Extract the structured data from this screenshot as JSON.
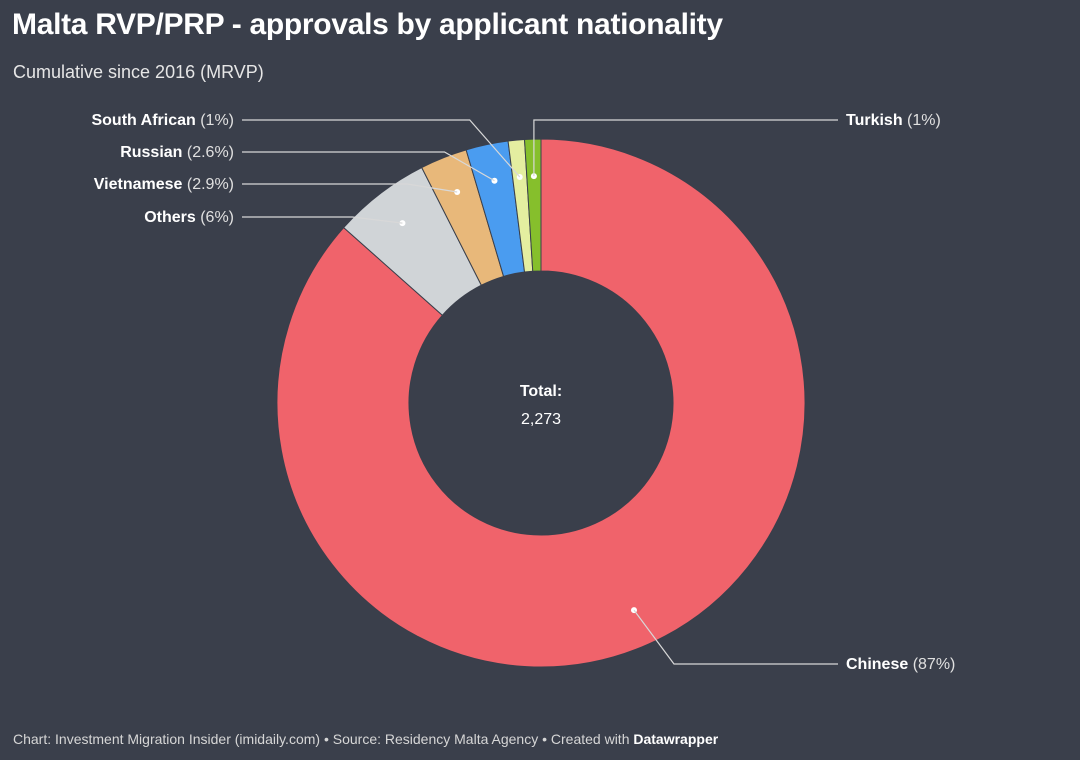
{
  "header": {
    "title": "Malta RVP/PRP - approvals by applicant nationality",
    "subtitle": "Cumulative since 2016 (MRVP)"
  },
  "footer": {
    "chart_credit": "Chart: Investment Migration Insider (imidaily.com)",
    "separator": " • ",
    "source": "Source: Residency Malta Agency",
    "created_prefix": "Created with ",
    "tool": "Datawrapper"
  },
  "chart_data": {
    "type": "pie",
    "variant": "donut",
    "center_label": "Total:",
    "center_value": "2,273",
    "slices": [
      {
        "name": "Chinese",
        "value": 87,
        "label_pct": "(87%)",
        "color": "#f0636b"
      },
      {
        "name": "Others",
        "value": 6,
        "label_pct": "(6%)",
        "color": "#d0d4d7"
      },
      {
        "name": "Vietnamese",
        "value": 2.9,
        "label_pct": "(2.9%)",
        "color": "#e8b87a"
      },
      {
        "name": "Russian",
        "value": 2.6,
        "label_pct": "(2.6%)",
        "color": "#4a9cf0"
      },
      {
        "name": "South African",
        "value": 1,
        "label_pct": "(1%)",
        "color": "#e4eea0"
      },
      {
        "name": "Turkish",
        "value": 1,
        "label_pct": "(1%)",
        "color": "#86bf2c"
      }
    ]
  }
}
